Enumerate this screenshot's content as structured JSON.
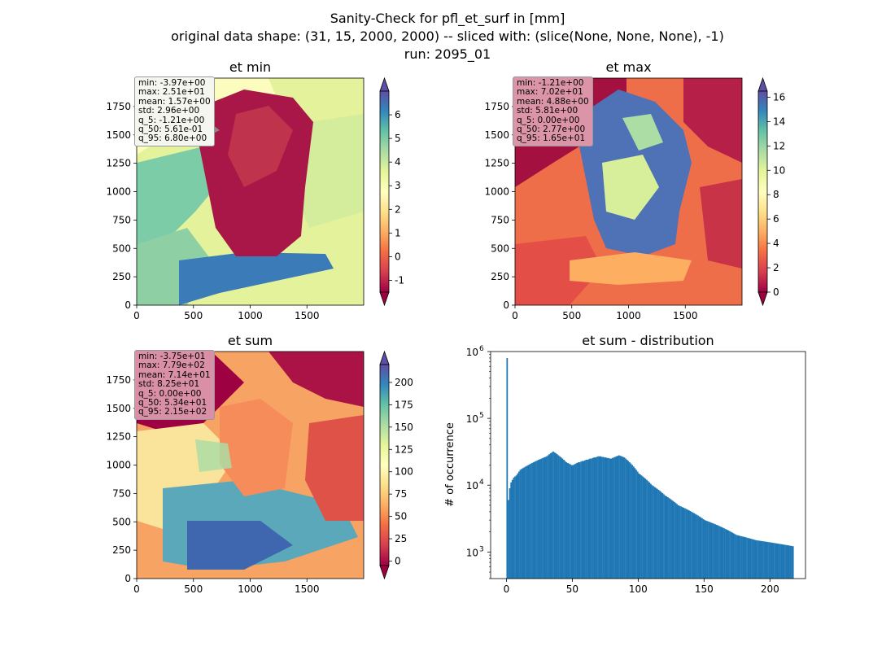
{
  "figure": {
    "title_lines": [
      "Sanity-Check for pfl_et_surf in [mm]",
      "original data shape: (31, 15, 2000, 2000) -- sliced with: (slice(None, None, None), -1)",
      "run: 2095_01"
    ]
  },
  "chart_data": [
    {
      "type": "heatmap",
      "title": "et min",
      "colormap": "Spectral",
      "xlim": [
        0,
        2000
      ],
      "ylim": [
        0,
        2000
      ],
      "xticks": [
        "0",
        "500",
        "1000",
        "1500"
      ],
      "yticks": [
        "0",
        "250",
        "500",
        "750",
        "1000",
        "1250",
        "1500",
        "1750"
      ],
      "colorbar": {
        "range": [
          -1.5,
          7.0
        ],
        "ticks": [
          "-1",
          "0",
          "1",
          "2",
          "3",
          "4",
          "5",
          "6"
        ],
        "extend": "both"
      },
      "stats": [
        "min: -3.97e+00",
        "max: 2.51e+01",
        "mean: 1.57e+00",
        "std: 2.96e+00",
        "q_5: -1.21e+00",
        "q_50: 5.61e-01",
        "q_95: 6.80e+00"
      ],
      "stats_box_color": "#f6f6f0"
    },
    {
      "type": "heatmap",
      "title": "et max",
      "colormap": "Spectral",
      "xlim": [
        0,
        2000
      ],
      "ylim": [
        0,
        2000
      ],
      "xticks": [
        "0",
        "500",
        "1000",
        "1500"
      ],
      "yticks": [
        "0",
        "250",
        "500",
        "750",
        "1000",
        "1250",
        "1500",
        "1750"
      ],
      "colorbar": {
        "range": [
          0,
          16.5
        ],
        "ticks": [
          "0",
          "2",
          "4",
          "6",
          "8",
          "10",
          "12",
          "14",
          "16"
        ],
        "extend": "both"
      },
      "stats": [
        "min: -1.21e+00",
        "max: 7.02e+01",
        "mean: 4.88e+00",
        "std: 5.81e+00",
        "q_5: 0.00e+00",
        "q_50: 2.77e+00",
        "q_95: 1.65e+01"
      ],
      "stats_box_color": "#dc95a8"
    },
    {
      "type": "heatmap",
      "title": "et sum",
      "colormap": "Spectral",
      "xlim": [
        0,
        2000
      ],
      "ylim": [
        0,
        2000
      ],
      "xticks": [
        "0",
        "500",
        "1000",
        "1500"
      ],
      "yticks": [
        "0",
        "250",
        "500",
        "750",
        "1000",
        "1250",
        "1500",
        "1750"
      ],
      "colorbar": {
        "range": [
          -5,
          220
        ],
        "ticks": [
          "0",
          "25",
          "50",
          "75",
          "100",
          "125",
          "150",
          "175",
          "200"
        ],
        "extend": "both"
      },
      "stats": [
        "min: -3.75e+01",
        "max: 7.79e+02",
        "mean: 7.14e+01",
        "std: 8.25e+01",
        "q_5: 0.00e+00",
        "q_50: 5.34e+01",
        "q_95: 2.15e+02"
      ],
      "stats_box_color": "#d98fa5"
    },
    {
      "type": "bar",
      "title": "et sum - distribution",
      "ylabel": "# of occurrence",
      "yscale": "log",
      "xlim": [
        -12,
        227
      ],
      "ylim": [
        400,
        1000000
      ],
      "xticks": [
        0,
        50,
        100,
        150,
        200
      ],
      "yticks": [
        1000,
        10000,
        100000,
        1000000
      ],
      "ytick_labels": [
        [
          "10",
          "3"
        ],
        [
          "10",
          "4"
        ],
        [
          "10",
          "5"
        ],
        [
          "10",
          "6"
        ]
      ],
      "bar_color": "#1f77b4",
      "bin_start": 0,
      "bin_width": 1,
      "counts": [
        800000,
        6000,
        9000,
        11000,
        12000,
        13000,
        13500,
        14000,
        15000,
        16000,
        17000,
        17500,
        18000,
        18500,
        19000,
        19500,
        20000,
        20500,
        21000,
        21500,
        22000,
        22500,
        23000,
        23500,
        24000,
        24500,
        25000,
        25500,
        26000,
        26500,
        27000,
        28000,
        29000,
        30000,
        31000,
        32000,
        31000,
        30000,
        29000,
        28000,
        27000,
        26000,
        25000,
        24000,
        23000,
        22000,
        21500,
        21000,
        20500,
        20000,
        20000,
        20500,
        21000,
        21500,
        22000,
        22000,
        22500,
        23000,
        23000,
        23500,
        24000,
        24000,
        24500,
        25000,
        25000,
        25500,
        26000,
        26000,
        26500,
        27000,
        27000,
        27000,
        26500,
        26500,
        26000,
        26000,
        25500,
        25500,
        25000,
        25000,
        25500,
        26000,
        26500,
        27000,
        27500,
        28000,
        27500,
        27000,
        26500,
        26000,
        25000,
        24000,
        23000,
        22000,
        21000,
        20000,
        19000,
        18000,
        17000,
        16000,
        15000,
        14500,
        14000,
        13500,
        13000,
        12500,
        12000,
        11500,
        11000,
        10500,
        10000,
        9700,
        9400,
        9100,
        8800,
        8500,
        8200,
        7900,
        7600,
        7300,
        7000,
        6800,
        6600,
        6400,
        6200,
        6000,
        5800,
        5600,
        5400,
        5200,
        5000,
        4900,
        4800,
        4700,
        4600,
        4500,
        4400,
        4300,
        4200,
        4100,
        4000,
        3900,
        3800,
        3700,
        3600,
        3500,
        3400,
        3300,
        3200,
        3100,
        3000,
        2950,
        2900,
        2850,
        2800,
        2750,
        2700,
        2650,
        2600,
        2550,
        2500,
        2450,
        2400,
        2350,
        2300,
        2250,
        2200,
        2150,
        2100,
        2050,
        2000,
        1950,
        1900,
        1850,
        1800,
        1780,
        1760,
        1740,
        1720,
        1700,
        1680,
        1660,
        1640,
        1620,
        1600,
        1580,
        1560,
        1540,
        1520,
        1500,
        1490,
        1480,
        1470,
        1460,
        1450,
        1440,
        1430,
        1420,
        1410,
        1400,
        1390,
        1380,
        1370,
        1360,
        1350,
        1340,
        1330,
        1320,
        1310,
        1300,
        1290,
        1280,
        1270,
        1260,
        1250,
        1240,
        1230,
        1220
      ]
    }
  ]
}
